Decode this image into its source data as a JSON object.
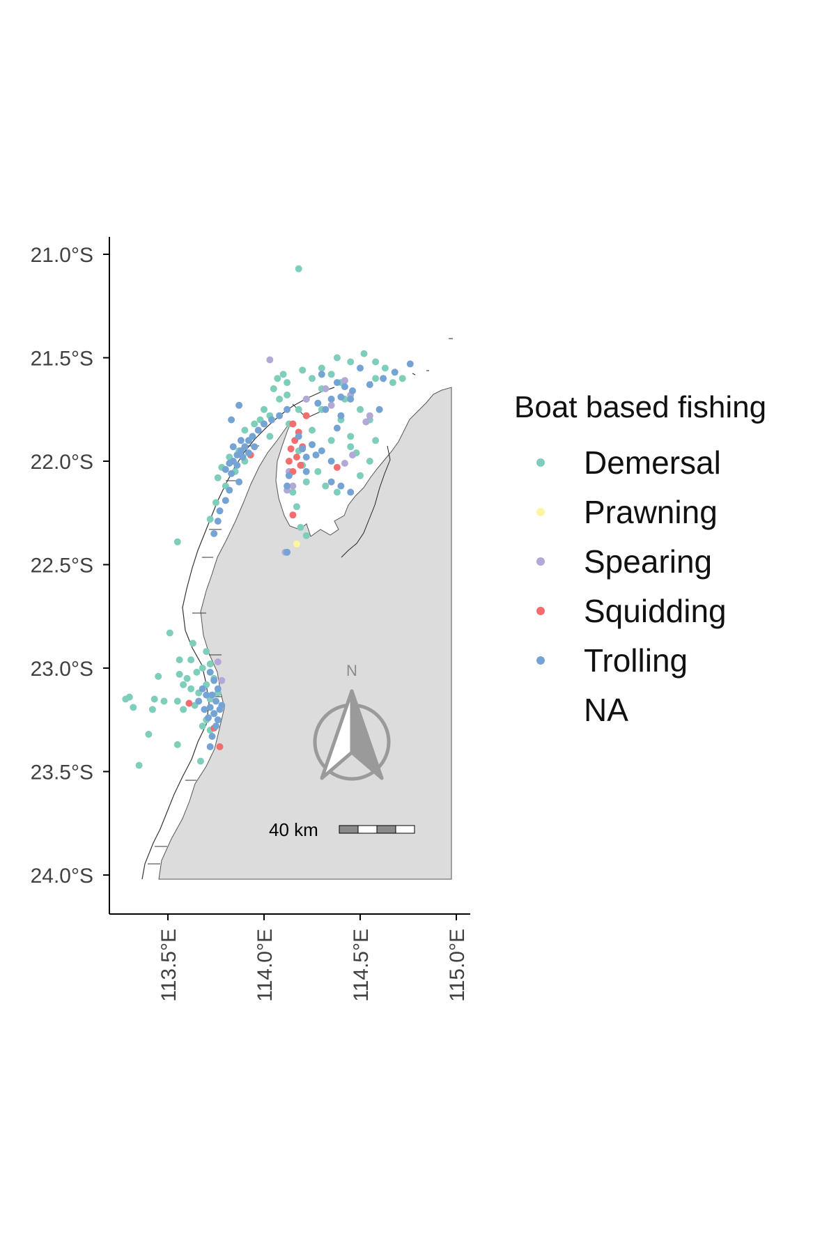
{
  "legend": {
    "title": "Boat based fishing",
    "items": [
      {
        "label": "Demersal",
        "color": "#7fcdbb"
      },
      {
        "label": "Prawning",
        "color": "#fbf7a1"
      },
      {
        "label": "Spearing",
        "color": "#b3a8d6"
      },
      {
        "label": "Squidding",
        "color": "#f26d6d"
      },
      {
        "label": "Trolling",
        "color": "#75a4d4"
      },
      {
        "label": "NA",
        "color": "none"
      }
    ]
  },
  "axes": {
    "y_ticks": [
      "21.0°S",
      "21.5°S",
      "22.0°S",
      "22.5°S",
      "23.0°S",
      "23.5°S",
      "24.0°S"
    ],
    "x_ticks": [
      "113.5°E",
      "114.0°E",
      "114.5°E",
      "115.0°E"
    ]
  },
  "north_arrow": {
    "label": "N",
    "icon": "north-arrow-icon"
  },
  "scale_bar": {
    "label": "40 km"
  },
  "colors": {
    "land": "#dcdcdc",
    "outline": "#333333",
    "axis": "#000000"
  },
  "chart_data": {
    "type": "scatter",
    "title": "",
    "xlabel": "",
    "ylabel": "",
    "xlim": [
      113.2,
      115.08
    ],
    "ylim": [
      -24.18,
      -20.92
    ],
    "x_ticks": [
      113.5,
      114.0,
      114.5,
      115.0
    ],
    "y_ticks": [
      -21.0,
      -21.5,
      -22.0,
      -22.5,
      -23.0,
      -23.5,
      -24.0
    ],
    "series": [
      {
        "name": "Demersal",
        "points": [
          [
            114.18,
            -21.07
          ],
          [
            114.52,
            -21.48
          ],
          [
            114.38,
            -21.5
          ],
          [
            114.45,
            -21.52
          ],
          [
            114.63,
            -21.55
          ],
          [
            114.3,
            -21.55
          ],
          [
            114.2,
            -21.56
          ],
          [
            114.1,
            -21.58
          ],
          [
            114.05,
            -21.65
          ],
          [
            114.12,
            -21.62
          ],
          [
            114.25,
            -21.6
          ],
          [
            114.35,
            -21.58
          ],
          [
            114.58,
            -21.6
          ],
          [
            114.67,
            -21.62
          ],
          [
            114.4,
            -21.62
          ],
          [
            114.3,
            -21.65
          ],
          [
            114.22,
            -21.7
          ],
          [
            114.18,
            -21.75
          ],
          [
            114.08,
            -21.7
          ],
          [
            114.0,
            -21.75
          ],
          [
            113.95,
            -21.82
          ],
          [
            113.9,
            -21.85
          ],
          [
            113.87,
            -21.95
          ],
          [
            113.82,
            -21.98
          ],
          [
            113.78,
            -22.03
          ],
          [
            113.76,
            -22.08
          ],
          [
            113.8,
            -22.12
          ],
          [
            113.75,
            -22.2
          ],
          [
            113.72,
            -22.28
          ],
          [
            113.55,
            -22.39
          ],
          [
            113.98,
            -21.8
          ],
          [
            114.03,
            -21.78
          ],
          [
            114.13,
            -21.82
          ],
          [
            114.25,
            -21.85
          ],
          [
            114.35,
            -21.9
          ],
          [
            114.45,
            -21.93
          ],
          [
            114.48,
            -21.96
          ],
          [
            114.18,
            -21.95
          ],
          [
            114.2,
            -22.02
          ],
          [
            114.28,
            -22.05
          ],
          [
            114.22,
            -22.1
          ],
          [
            114.32,
            -22.12
          ],
          [
            114.38,
            -22.15
          ],
          [
            114.15,
            -22.15
          ],
          [
            114.17,
            -22.22
          ],
          [
            114.19,
            -22.32
          ],
          [
            114.22,
            -22.36
          ],
          [
            114.42,
            -21.7
          ],
          [
            114.5,
            -21.75
          ],
          [
            114.55,
            -21.8
          ],
          [
            114.4,
            -21.8
          ],
          [
            114.3,
            -21.75
          ],
          [
            114.45,
            -21.88
          ],
          [
            114.5,
            -22.07
          ],
          [
            114.55,
            -22.0
          ],
          [
            114.58,
            -21.9
          ],
          [
            113.51,
            -22.83
          ],
          [
            113.63,
            -22.88
          ],
          [
            113.7,
            -22.92
          ],
          [
            113.72,
            -22.98
          ],
          [
            113.68,
            -23.0
          ],
          [
            113.65,
            -23.02
          ],
          [
            113.6,
            -23.05
          ],
          [
            113.56,
            -23.03
          ],
          [
            113.58,
            -23.08
          ],
          [
            113.62,
            -23.1
          ],
          [
            113.66,
            -23.12
          ],
          [
            113.7,
            -23.08
          ],
          [
            113.74,
            -23.05
          ],
          [
            113.76,
            -23.12
          ],
          [
            113.72,
            -23.15
          ],
          [
            113.64,
            -23.18
          ],
          [
            113.58,
            -23.2
          ],
          [
            113.55,
            -23.16
          ],
          [
            113.48,
            -23.16
          ],
          [
            113.43,
            -23.15
          ],
          [
            113.42,
            -23.2
          ],
          [
            113.3,
            -23.14
          ],
          [
            113.32,
            -23.19
          ],
          [
            113.28,
            -23.15
          ],
          [
            113.4,
            -23.32
          ],
          [
            113.55,
            -23.37
          ],
          [
            113.35,
            -23.47
          ],
          [
            113.67,
            -23.45
          ],
          [
            113.72,
            -23.3
          ],
          [
            113.7,
            -23.25
          ],
          [
            113.74,
            -23.22
          ],
          [
            113.68,
            -23.28
          ],
          [
            113.45,
            -23.04
          ],
          [
            113.56,
            -22.96
          ],
          [
            113.62,
            -22.96
          ],
          [
            114.12,
            -21.68
          ],
          [
            114.07,
            -21.6
          ],
          [
            114.58,
            -21.52
          ],
          [
            114.72,
            -21.6
          ],
          [
            114.03,
            -21.88
          ],
          [
            113.9,
            -22.0
          ],
          [
            113.85,
            -22.05
          ]
        ]
      },
      {
        "name": "Prawning",
        "points": [
          [
            114.17,
            -22.4
          ]
        ]
      },
      {
        "name": "Spearing",
        "points": [
          [
            114.03,
            -21.51
          ],
          [
            114.32,
            -21.65
          ],
          [
            114.45,
            -21.68
          ],
          [
            114.42,
            -21.61
          ],
          [
            114.55,
            -21.78
          ],
          [
            114.53,
            -21.81
          ],
          [
            114.46,
            -21.97
          ],
          [
            114.42,
            -22.01
          ],
          [
            114.13,
            -22.05
          ],
          [
            114.15,
            -22.12
          ],
          [
            114.12,
            -22.14
          ],
          [
            114.11,
            -22.44
          ],
          [
            113.76,
            -22.97
          ],
          [
            113.78,
            -23.06
          ],
          [
            114.22,
            -21.7
          ],
          [
            114.35,
            -21.73
          ]
        ]
      },
      {
        "name": "Squidding",
        "points": [
          [
            114.15,
            -21.82
          ],
          [
            114.18,
            -21.86
          ],
          [
            114.16,
            -21.9
          ],
          [
            114.14,
            -21.94
          ],
          [
            114.17,
            -21.98
          ],
          [
            114.19,
            -22.02
          ],
          [
            114.15,
            -22.05
          ],
          [
            114.2,
            -21.93
          ],
          [
            114.13,
            -22.0
          ],
          [
            114.15,
            -22.26
          ],
          [
            114.38,
            -22.03
          ],
          [
            113.61,
            -23.17
          ],
          [
            113.74,
            -23.29
          ],
          [
            113.77,
            -23.38
          ],
          [
            113.93,
            -21.97
          ],
          [
            114.22,
            -21.78
          ]
        ]
      },
      {
        "name": "Trolling",
        "points": [
          [
            114.3,
            -21.58
          ],
          [
            114.38,
            -21.62
          ],
          [
            114.42,
            -21.64
          ],
          [
            114.46,
            -21.66
          ],
          [
            114.4,
            -21.69
          ],
          [
            114.35,
            -21.7
          ],
          [
            114.32,
            -21.75
          ],
          [
            114.28,
            -21.72
          ],
          [
            114.62,
            -21.6
          ],
          [
            114.68,
            -21.57
          ],
          [
            114.76,
            -21.53
          ],
          [
            114.5,
            -21.55
          ],
          [
            114.12,
            -21.75
          ],
          [
            114.08,
            -21.78
          ],
          [
            114.04,
            -21.8
          ],
          [
            114.0,
            -21.82
          ],
          [
            113.97,
            -21.85
          ],
          [
            113.94,
            -21.88
          ],
          [
            113.92,
            -21.9
          ],
          [
            113.9,
            -21.93
          ],
          [
            113.88,
            -21.95
          ],
          [
            113.86,
            -21.97
          ],
          [
            113.84,
            -22.0
          ],
          [
            113.82,
            -22.01
          ],
          [
            113.8,
            -22.04
          ],
          [
            113.83,
            -22.06
          ],
          [
            113.86,
            -22.02
          ],
          [
            113.89,
            -21.98
          ],
          [
            113.92,
            -21.96
          ],
          [
            113.95,
            -21.93
          ],
          [
            113.88,
            -21.9
          ],
          [
            113.84,
            -21.93
          ],
          [
            113.87,
            -22.1
          ],
          [
            113.82,
            -22.14
          ],
          [
            113.8,
            -22.19
          ],
          [
            113.77,
            -22.24
          ],
          [
            113.76,
            -22.29
          ],
          [
            113.74,
            -22.35
          ],
          [
            113.87,
            -21.73
          ],
          [
            113.83,
            -21.8
          ],
          [
            114.18,
            -21.88
          ],
          [
            114.2,
            -21.94
          ],
          [
            114.22,
            -21.98
          ],
          [
            114.25,
            -21.92
          ],
          [
            114.3,
            -21.95
          ],
          [
            114.35,
            -22.0
          ],
          [
            114.22,
            -22.05
          ],
          [
            114.4,
            -22.12
          ],
          [
            114.45,
            -22.15
          ],
          [
            114.35,
            -22.1
          ],
          [
            114.27,
            -21.97
          ],
          [
            114.4,
            -21.78
          ],
          [
            114.38,
            -21.84
          ],
          [
            114.45,
            -21.7
          ],
          [
            114.55,
            -21.63
          ],
          [
            114.6,
            -21.75
          ],
          [
            113.72,
            -23.02
          ],
          [
            113.74,
            -23.06
          ],
          [
            113.76,
            -23.1
          ],
          [
            113.73,
            -23.13
          ],
          [
            113.75,
            -23.16
          ],
          [
            113.72,
            -23.19
          ],
          [
            113.74,
            -23.22
          ],
          [
            113.76,
            -23.25
          ],
          [
            113.71,
            -23.24
          ],
          [
            113.69,
            -23.2
          ],
          [
            113.7,
            -23.13
          ],
          [
            113.77,
            -23.2
          ],
          [
            113.75,
            -23.28
          ],
          [
            113.73,
            -23.33
          ],
          [
            113.68,
            -23.1
          ],
          [
            113.72,
            -23.38
          ],
          [
            113.78,
            -23.18
          ],
          [
            113.66,
            -23.16
          ],
          [
            114.13,
            -22.07
          ],
          [
            114.12,
            -22.12
          ],
          [
            114.12,
            -22.44
          ]
        ]
      }
    ]
  }
}
